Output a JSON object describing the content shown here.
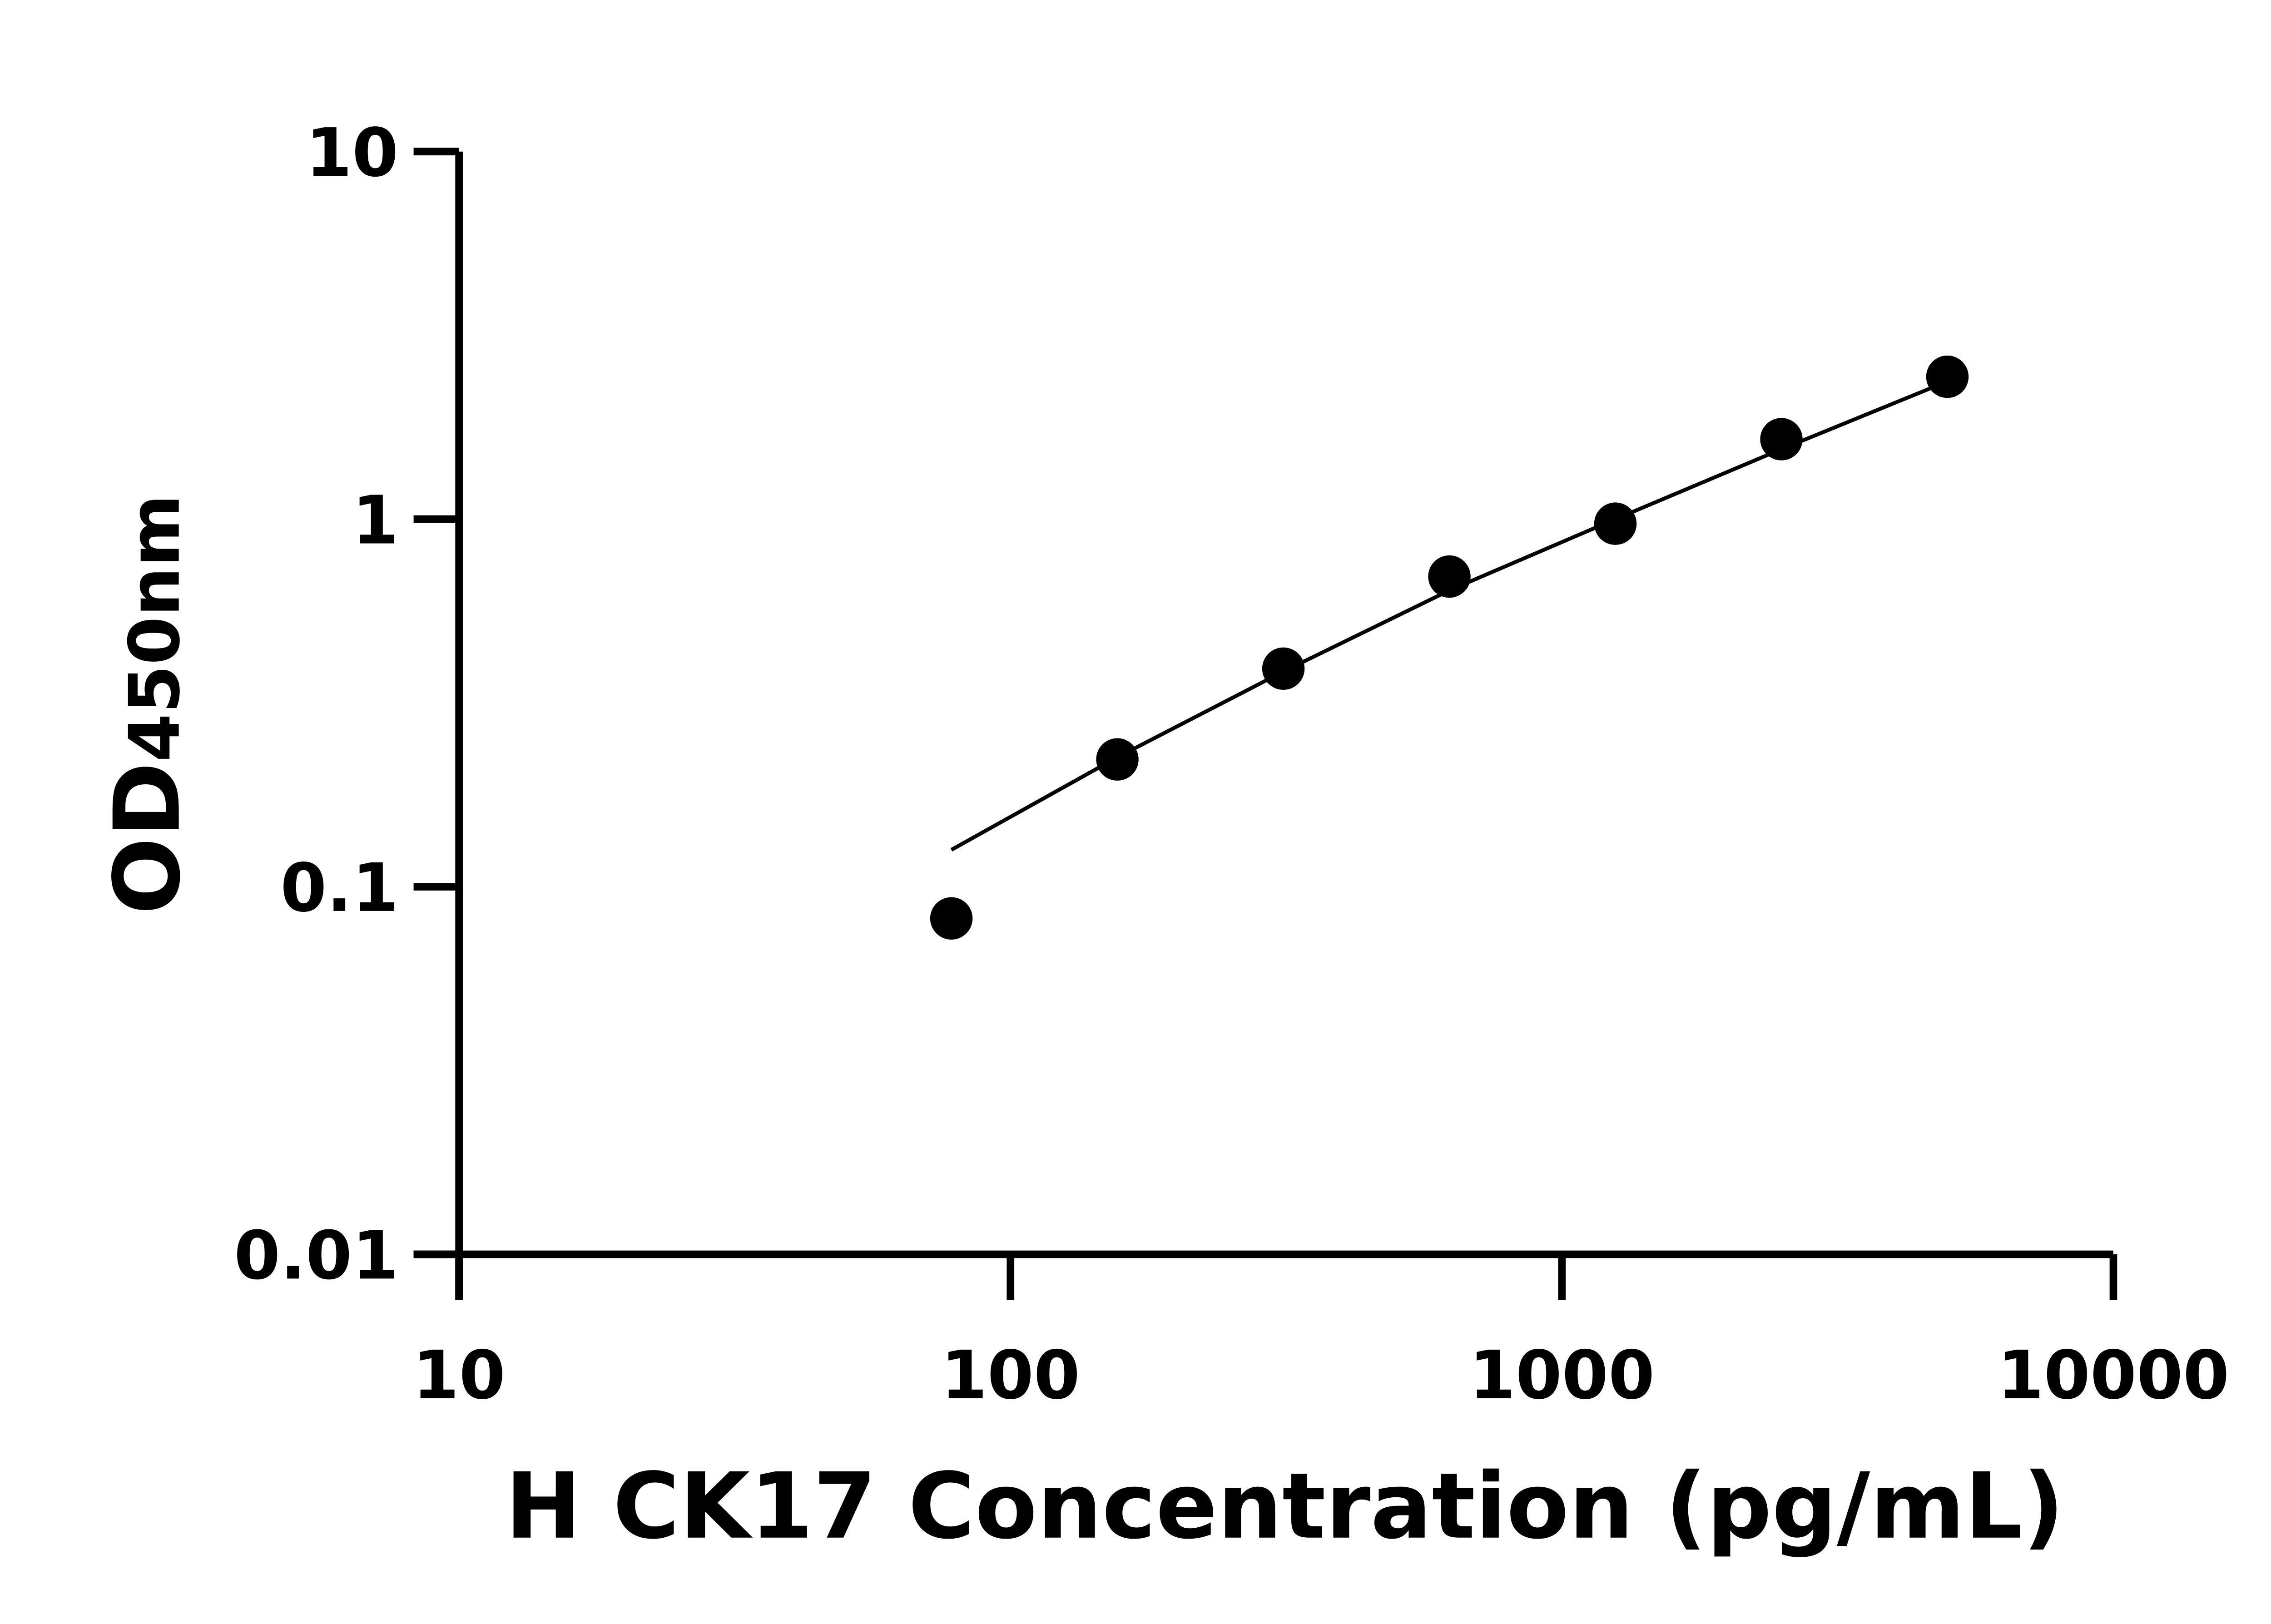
{
  "chart_data": {
    "type": "scatter",
    "title": "",
    "xlabel": "H CK17 Concentration (pg/mL)",
    "ylabel_main": "OD",
    "ylabel_sub": "450nm",
    "xscale": "log",
    "yscale": "log",
    "xlim": [
      10,
      10000
    ],
    "ylim": [
      0.01,
      10
    ],
    "xticks": [
      "10",
      "100",
      "1000",
      "10000"
    ],
    "yticks": [
      "0.01",
      "0.1",
      "1",
      "10"
    ],
    "grid": false,
    "color": "#000000",
    "points": {
      "x": [
        78.125,
        156.25,
        312.5,
        625,
        1250,
        2500,
        5000
      ],
      "y": [
        0.082,
        0.222,
        0.392,
        0.698,
        0.972,
        1.65,
        2.44
      ]
    },
    "fit": {
      "x": [
        78.125,
        156.25,
        312.5,
        625,
        1250,
        2500,
        5000
      ],
      "y": [
        0.126,
        0.225,
        0.385,
        0.64,
        1.0,
        1.55,
        2.37
      ]
    }
  }
}
